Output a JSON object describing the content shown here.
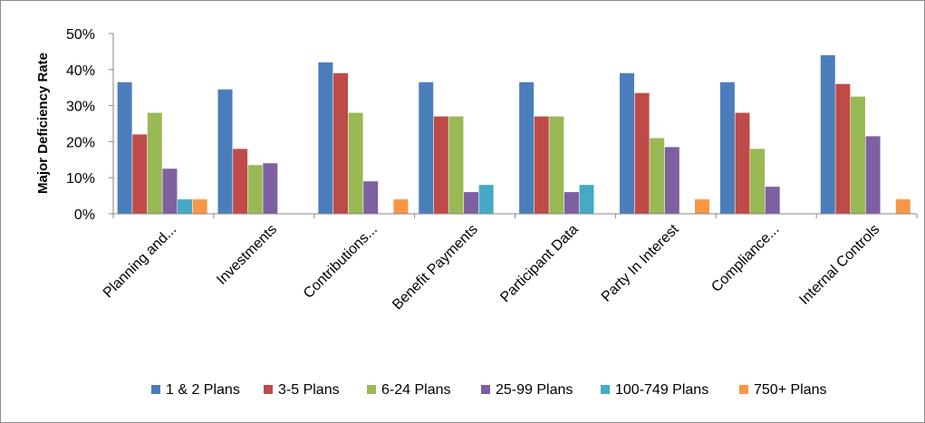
{
  "chart_data": {
    "type": "bar",
    "title": "",
    "xlabel": "",
    "ylabel": "Major Deficiency Rate",
    "ylim": [
      0,
      50
    ],
    "y_ticks": [
      0,
      10,
      20,
      30,
      40,
      50
    ],
    "y_tick_labels": [
      "0%",
      "10%",
      "20%",
      "30%",
      "40%",
      "50%"
    ],
    "grid": false,
    "legend_position": "bottom",
    "categories": [
      "Planning and...",
      "Investments",
      "Contributions...",
      "Benefit Payments",
      "Participant Data",
      "Party In Interest",
      "Compliance...",
      "Internal Controls"
    ],
    "series": [
      {
        "name": "1 & 2 Plans",
        "color": "#4a7ebb",
        "values": [
          36.5,
          34.5,
          42,
          36.5,
          36.5,
          39,
          36.5,
          44
        ]
      },
      {
        "name": "3-5 Plans",
        "color": "#be4b48",
        "values": [
          22,
          18,
          39,
          27,
          27,
          33.5,
          28,
          36
        ]
      },
      {
        "name": "6-24 Plans",
        "color": "#98b954",
        "values": [
          28,
          13.5,
          28,
          27,
          27,
          21,
          18,
          32.5
        ]
      },
      {
        "name": "25-99 Plans",
        "color": "#7d60a0",
        "values": [
          12.5,
          14,
          9,
          6,
          6,
          18.5,
          7.5,
          21.5
        ]
      },
      {
        "name": "100-749 Plans",
        "color": "#46aac5",
        "values": [
          4,
          0,
          0,
          8,
          8,
          0,
          0,
          0
        ]
      },
      {
        "name": "750+ Plans",
        "color": "#f79646",
        "values": [
          4,
          0,
          4,
          0,
          0,
          4,
          0,
          4
        ]
      }
    ]
  }
}
